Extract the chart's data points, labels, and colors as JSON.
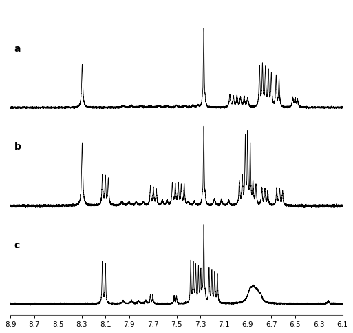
{
  "x_min": 6.1,
  "x_max": 8.9,
  "x_ticks": [
    8.9,
    8.7,
    8.5,
    8.3,
    8.1,
    7.9,
    7.7,
    7.5,
    7.3,
    7.1,
    6.9,
    6.7,
    6.5,
    6.3,
    6.1
  ],
  "label_a": "a",
  "label_b": "b",
  "label_c": "c",
  "line_color": "#000000",
  "background_color": "#ffffff",
  "linewidth": 0.6
}
